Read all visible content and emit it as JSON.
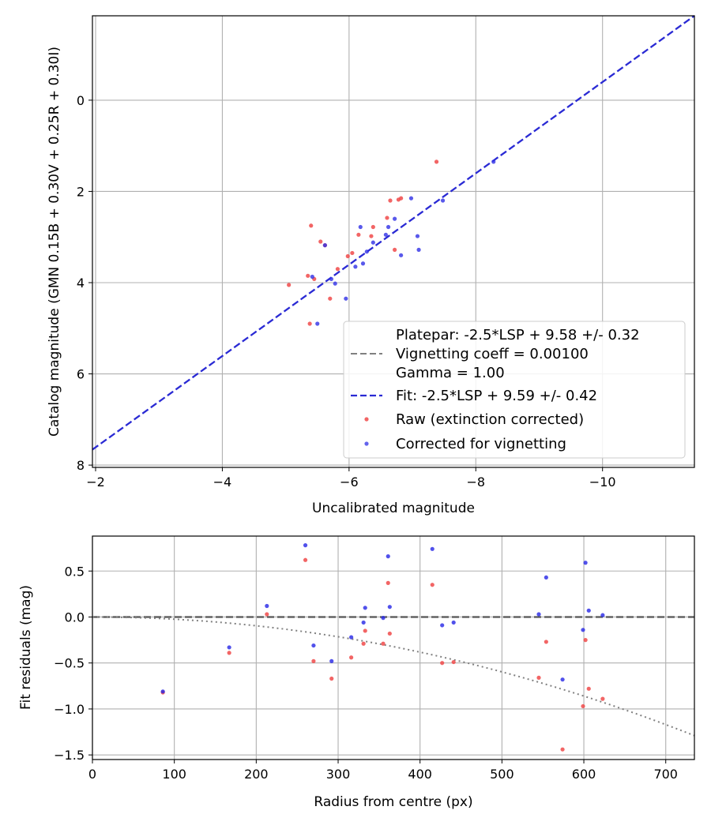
{
  "chart_data": [
    {
      "type": "scatter",
      "xlabel": "Uncalibrated magnitude",
      "ylabel": "Catalog magnitude (GMN 0.15B + 0.30V + 0.25R + 0.30I)",
      "xlim": [
        -1.95,
        -11.45
      ],
      "ylim": [
        8.05,
        -1.85
      ],
      "x_inverted": true,
      "y_inverted": true,
      "xticks": [
        -2,
        -4,
        -6,
        -8,
        -10
      ],
      "xtick_labels": [
        "−2",
        "−4",
        "−6",
        "−8",
        "−10"
      ],
      "yticks": [
        0,
        2,
        4,
        6,
        8
      ],
      "ytick_labels": [
        "0",
        "2",
        "4",
        "6",
        "8"
      ],
      "grid": true,
      "legend_position": "lower-right",
      "legend": [
        "Platepar: -2.5*LSP + 9.58 +/- 0.32",
        "Vignetting coeff = 0.00100",
        "Gamma = 1.00",
        "Fit: -2.5*LSP + 9.59 +/- 0.42",
        "Raw (extinction corrected)",
        "Corrected for vignetting"
      ],
      "lines": [
        {
          "name": "Fit: -2.5*LSP + 9.59 +/- 0.42",
          "color": "#2a2ad4",
          "style": "dashed",
          "x": [
            -1.95,
            -11.45
          ],
          "y": [
            7.66,
            -1.85
          ]
        }
      ],
      "series": [
        {
          "name": "Raw (extinction corrected)",
          "color": "#f04a4a",
          "points": [
            [
              -5.05,
              4.05
            ],
            [
              -5.35,
              3.85
            ],
            [
              -5.4,
              2.75
            ],
            [
              -5.45,
              3.92
            ],
            [
              -5.38,
              4.9
            ],
            [
              -5.55,
              3.1
            ],
            [
              -5.62,
              3.18
            ],
            [
              -5.7,
              4.35
            ],
            [
              -5.82,
              3.7
            ],
            [
              -5.98,
              3.42
            ],
            [
              -6.05,
              3.35
            ],
            [
              -6.15,
              2.95
            ],
            [
              -6.35,
              2.98
            ],
            [
              -6.38,
              2.78
            ],
            [
              -6.6,
              2.58
            ],
            [
              -6.65,
              2.2
            ],
            [
              -6.72,
              3.28
            ],
            [
              -6.78,
              2.18
            ],
            [
              -6.82,
              2.15
            ],
            [
              -7.38,
              1.35
            ]
          ]
        },
        {
          "name": "Corrected for vignetting",
          "color": "#2f2fe6",
          "points": [
            [
              -5.42,
              3.87
            ],
            [
              -5.5,
              4.9
            ],
            [
              -5.62,
              3.18
            ],
            [
              -5.72,
              3.92
            ],
            [
              -5.78,
              4.02
            ],
            [
              -5.95,
              4.35
            ],
            [
              -6.1,
              3.65
            ],
            [
              -6.18,
              2.78
            ],
            [
              -6.22,
              3.58
            ],
            [
              -6.28,
              3.32
            ],
            [
              -6.38,
              3.12
            ],
            [
              -6.58,
              2.95
            ],
            [
              -6.62,
              2.78
            ],
            [
              -6.72,
              2.6
            ],
            [
              -6.82,
              3.4
            ],
            [
              -6.98,
              2.15
            ],
            [
              -7.08,
              2.98
            ],
            [
              -7.1,
              3.28
            ],
            [
              -7.48,
              2.2
            ],
            [
              -8.28,
              1.35
            ]
          ]
        }
      ]
    },
    {
      "type": "scatter",
      "xlabel": "Radius from centre (px)",
      "ylabel": "Fit residuals (mag)",
      "xlim": [
        0,
        735
      ],
      "ylim": [
        -1.55,
        0.88
      ],
      "xticks": [
        0,
        100,
        200,
        300,
        400,
        500,
        600,
        700
      ],
      "xtick_labels": [
        "0",
        "100",
        "200",
        "300",
        "400",
        "500",
        "600",
        "700"
      ],
      "yticks": [
        -1.5,
        -1.0,
        -0.5,
        0.0,
        0.5
      ],
      "ytick_labels": [
        "−1.5",
        "−1.0",
        "−0.5",
        "0.0",
        "0.5"
      ],
      "grid": true,
      "lines": [
        {
          "name": "zero",
          "color": "#555555",
          "style": "dashed",
          "x": [
            0,
            735
          ],
          "y": [
            0,
            0
          ]
        },
        {
          "name": "vignetting",
          "color": "#808080",
          "style": "dotted",
          "coeff": 0.001
        }
      ],
      "series": [
        {
          "name": "Raw (extinction corrected)",
          "color": "#f04a4a",
          "points": [
            [
              86,
              -0.82
            ],
            [
              167,
              -0.39
            ],
            [
              213,
              0.03
            ],
            [
              260,
              0.62
            ],
            [
              270,
              -0.48
            ],
            [
              292,
              -0.67
            ],
            [
              316,
              -0.44
            ],
            [
              331,
              -0.29
            ],
            [
              333,
              -0.15
            ],
            [
              355,
              -0.29
            ],
            [
              361,
              0.37
            ],
            [
              363,
              -0.18
            ],
            [
              415,
              0.35
            ],
            [
              427,
              -0.5
            ],
            [
              441,
              -0.49
            ],
            [
              545,
              -0.66
            ],
            [
              554,
              -0.27
            ],
            [
              574,
              -1.44
            ],
            [
              599,
              -0.97
            ],
            [
              602,
              -0.25
            ],
            [
              606,
              -0.78
            ],
            [
              623,
              -0.89
            ]
          ]
        },
        {
          "name": "Corrected for vignetting",
          "color": "#2626e6",
          "points": [
            [
              86,
              -0.81
            ],
            [
              167,
              -0.33
            ],
            [
              213,
              0.12
            ],
            [
              260,
              0.78
            ],
            [
              270,
              -0.31
            ],
            [
              292,
              -0.48
            ],
            [
              316,
              -0.22
            ],
            [
              331,
              -0.06
            ],
            [
              333,
              0.1
            ],
            [
              355,
              -0.01
            ],
            [
              361,
              0.66
            ],
            [
              363,
              0.11
            ],
            [
              415,
              0.74
            ],
            [
              427,
              -0.09
            ],
            [
              441,
              -0.06
            ],
            [
              545,
              0.03
            ],
            [
              554,
              0.43
            ],
            [
              574,
              -0.68
            ],
            [
              599,
              -0.14
            ],
            [
              602,
              0.59
            ],
            [
              606,
              0.07
            ],
            [
              623,
              0.02
            ]
          ]
        }
      ]
    }
  ]
}
